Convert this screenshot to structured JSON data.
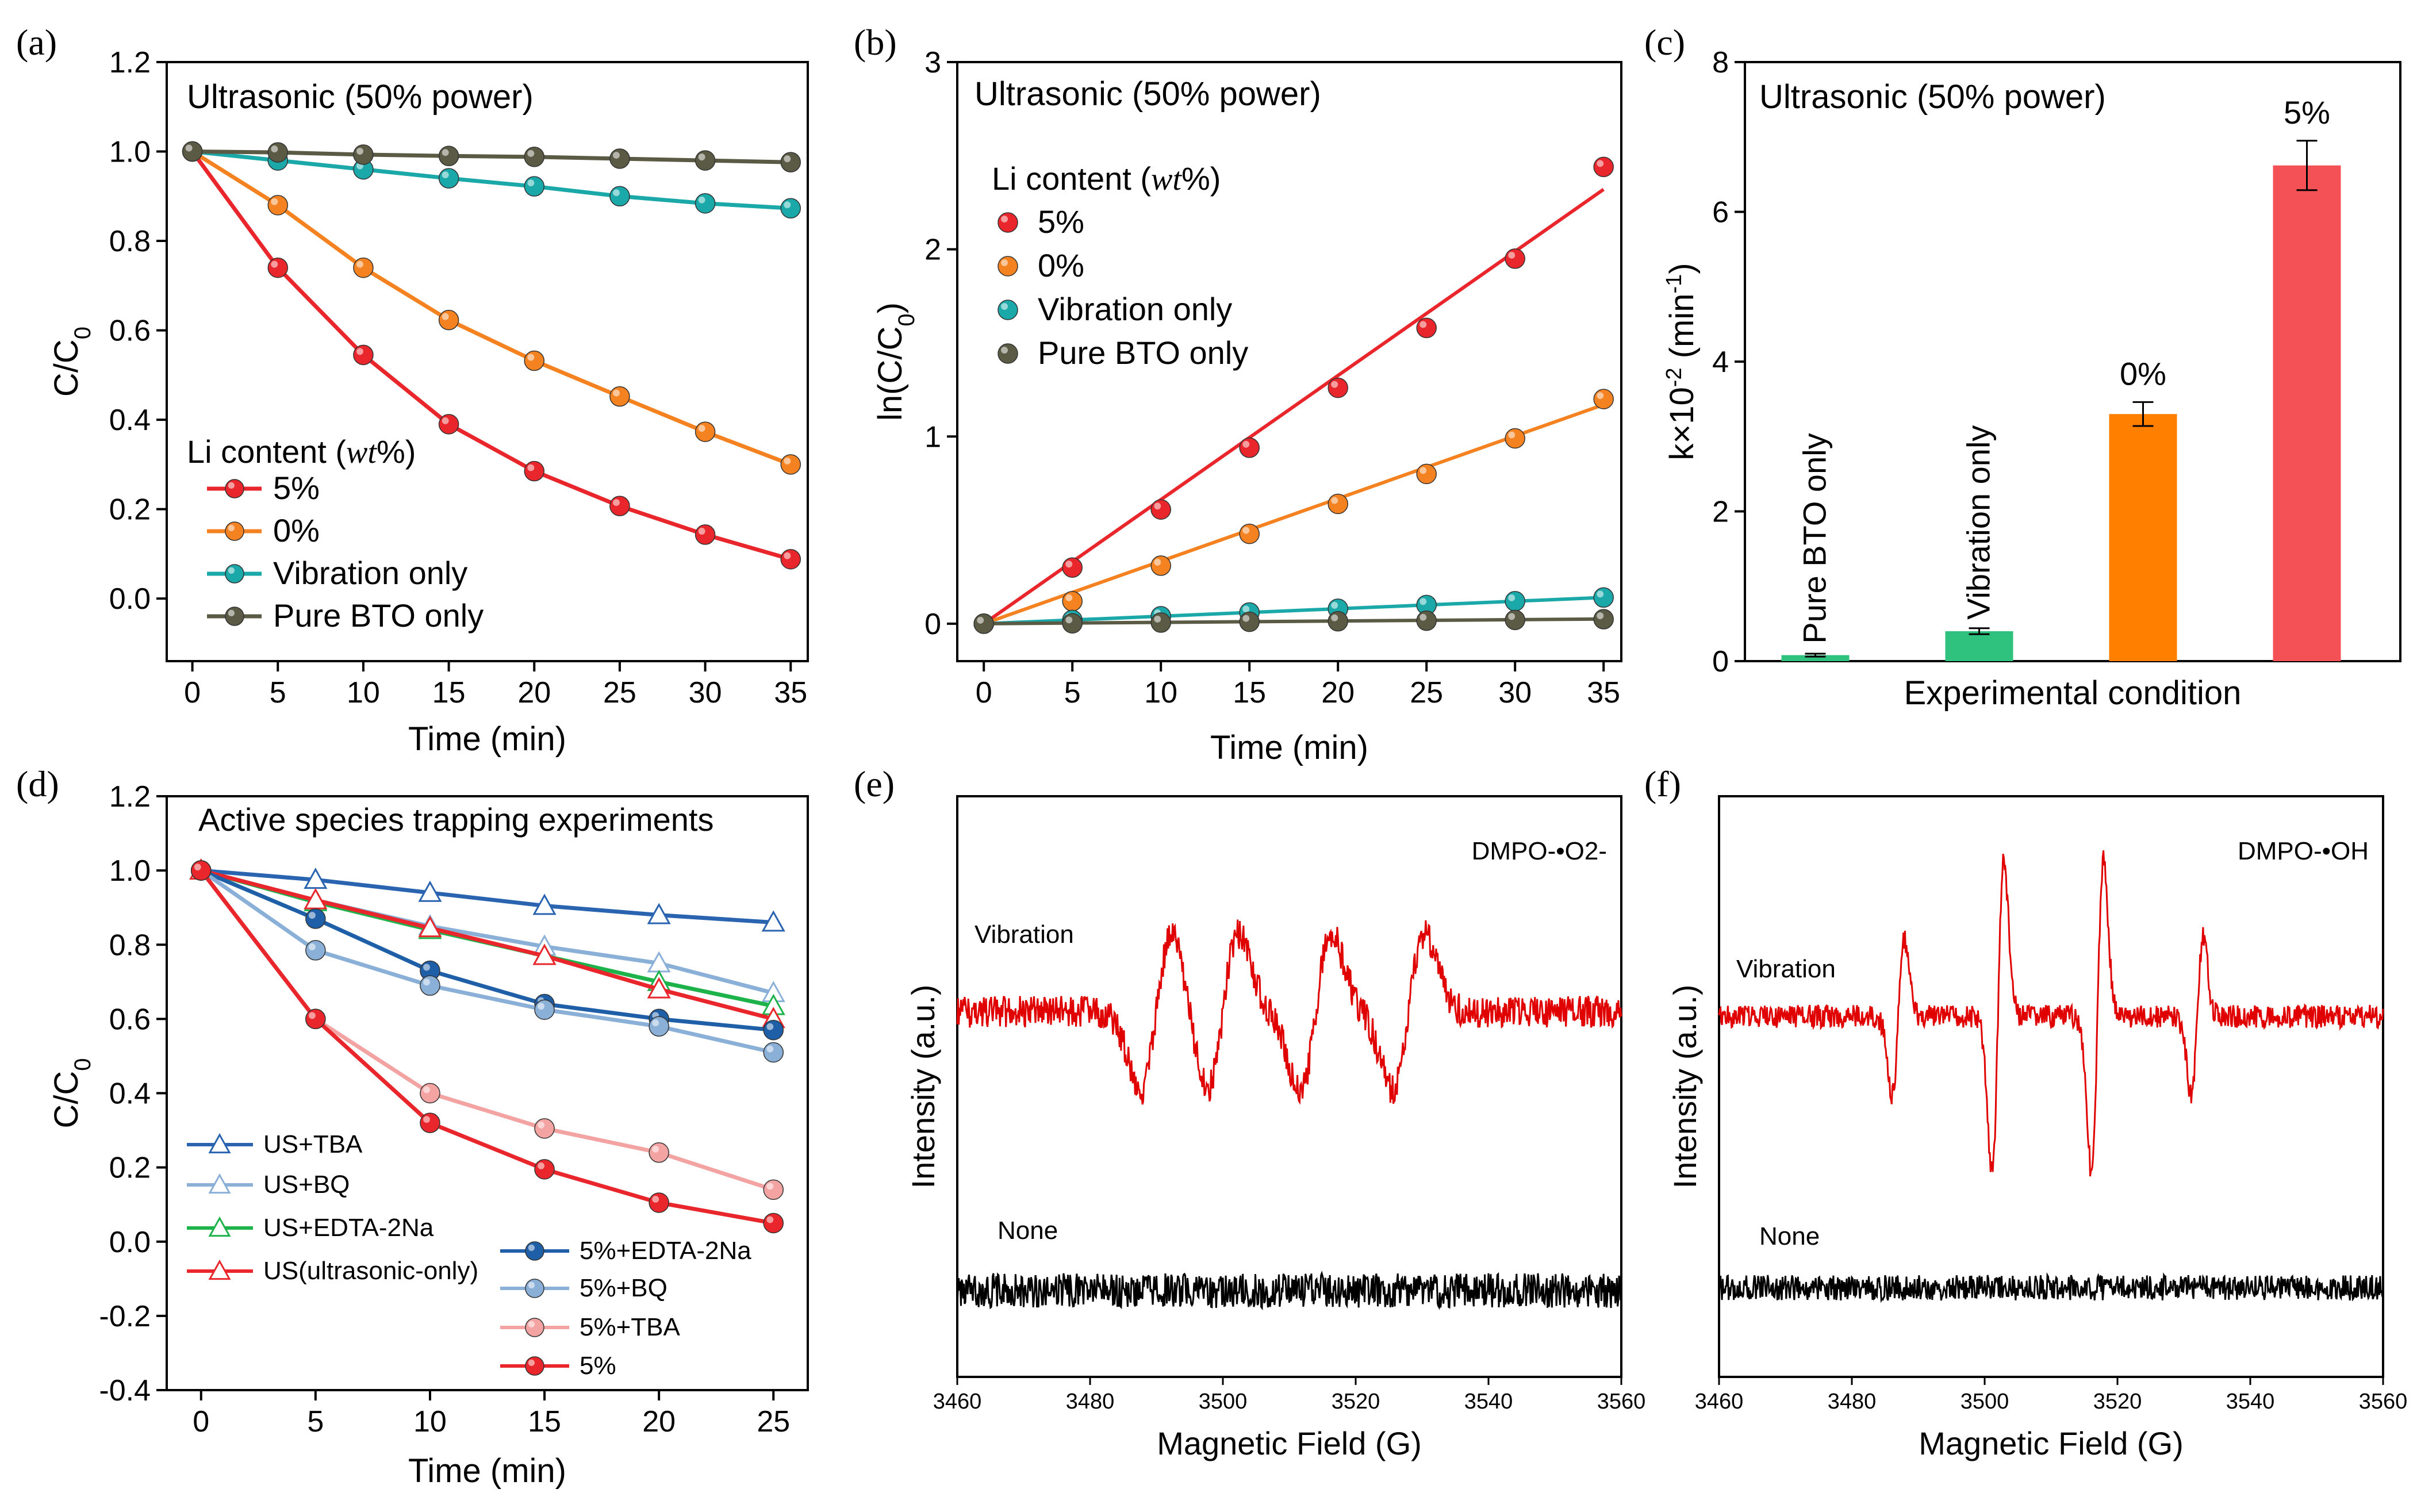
{
  "figure": {
    "panels": [
      "(a)",
      "(b)",
      "(c)",
      "(d)",
      "(e)",
      "(f)"
    ]
  },
  "chart_data": [
    {
      "id": "a",
      "type": "line",
      "panel_label": "(a)",
      "title": "Ultrasonic (50% power)",
      "xlabel": "Time (min)",
      "ylabel": "C/C0",
      "xlim": [
        -1.5,
        36
      ],
      "ylim": [
        -0.14,
        1.2
      ],
      "xticks": [
        0,
        5,
        10,
        15,
        20,
        25,
        30,
        35
      ],
      "yticks": [
        0.0,
        0.2,
        0.4,
        0.6,
        0.8,
        1.0,
        1.2
      ],
      "legend_title": "Li content (wt%)",
      "legend_position": "bottom-left",
      "x": [
        0,
        5,
        10,
        15,
        20,
        25,
        30,
        35
      ],
      "series": [
        {
          "name": "5%",
          "color": "#e8262b",
          "values": [
            1.0,
            0.74,
            0.545,
            0.39,
            0.285,
            0.207,
            0.143,
            0.088
          ]
        },
        {
          "name": "0%",
          "color": "#f58220",
          "values": [
            1.0,
            0.88,
            0.74,
            0.623,
            0.532,
            0.452,
            0.373,
            0.3
          ]
        },
        {
          "name": "Vibration only",
          "color": "#1aa8a8",
          "values": [
            1.0,
            0.98,
            0.96,
            0.94,
            0.922,
            0.9,
            0.884,
            0.873
          ]
        },
        {
          "name": "Pure BTO only",
          "color": "#5b5b45",
          "values": [
            1.0,
            0.998,
            0.993,
            0.99,
            0.988,
            0.984,
            0.98,
            0.976
          ]
        }
      ]
    },
    {
      "id": "b",
      "type": "scatter",
      "panel_label": "(b)",
      "title": "Ultrasonic (50% power)",
      "xlabel": "Time (min)",
      "ylabel": "ln(C/C0)",
      "xlim": [
        -1.5,
        36
      ],
      "ylim": [
        -0.2,
        3
      ],
      "xticks": [
        0,
        5,
        10,
        15,
        20,
        25,
        30,
        35
      ],
      "yticks": [
        0,
        1,
        2,
        3
      ],
      "legend_title": "Li content (wt%)",
      "legend_position": "top-left",
      "x": [
        0,
        5,
        10,
        15,
        20,
        25,
        30,
        35
      ],
      "series": [
        {
          "name": "5%",
          "color": "#e8262b",
          "values": [
            0,
            0.3,
            0.61,
            0.94,
            1.26,
            1.58,
            1.95,
            2.44
          ],
          "fit_end": 2.32
        },
        {
          "name": "0%",
          "color": "#f58220",
          "values": [
            0,
            0.12,
            0.31,
            0.48,
            0.64,
            0.8,
            0.99,
            1.2
          ],
          "fit_end": 1.17
        },
        {
          "name": "Vibration only",
          "color": "#1aa8a8",
          "values": [
            0,
            0.02,
            0.04,
            0.06,
            0.08,
            0.1,
            0.12,
            0.14
          ],
          "fit_end": 0.14
        },
        {
          "name": "Pure BTO only",
          "color": "#5b5b45",
          "values": [
            0,
            0.002,
            0.006,
            0.01,
            0.013,
            0.016,
            0.02,
            0.024
          ],
          "fit_end": 0.025
        }
      ]
    },
    {
      "id": "c",
      "type": "bar",
      "panel_label": "(c)",
      "title": "Ultrasonic (50% power)",
      "xlabel": "Experimental condition",
      "ylabel": "k×10-2 (min-1)",
      "ylim": [
        0,
        8
      ],
      "yticks": [
        0,
        2,
        4,
        6,
        8
      ],
      "categories": [
        "Pure BTO only",
        "Vibration only",
        "0%",
        "5%"
      ],
      "values": [
        0.08,
        0.4,
        3.3,
        6.62
      ],
      "errors": [
        0.02,
        0.04,
        0.16,
        0.33
      ],
      "colors": [
        "#2ec27e",
        "#2ec27e",
        "#ff8000",
        "#f45157"
      ],
      "label_style": [
        "vertical",
        "vertical",
        "above",
        "above"
      ]
    },
    {
      "id": "d",
      "type": "line",
      "panel_label": "(d)",
      "title": "Active species trapping experiments",
      "xlabel": "Time (min)",
      "ylabel": "C/C0",
      "xlim": [
        -1.5,
        26.5
      ],
      "ylim": [
        -0.4,
        1.2
      ],
      "xticks": [
        0,
        5,
        10,
        15,
        20,
        25
      ],
      "yticks": [
        -0.4,
        -0.2,
        0.0,
        0.2,
        0.4,
        0.6,
        0.8,
        1.0,
        1.2
      ],
      "legend_position": "bottom-left",
      "x": [
        0,
        5,
        10,
        15,
        20,
        25
      ],
      "series": [
        {
          "name": "US+TBA",
          "color": "#2a64b0",
          "marker": "triangle",
          "values": [
            1.0,
            0.975,
            0.94,
            0.905,
            0.88,
            0.86
          ]
        },
        {
          "name": "US+BQ",
          "color": "#8ab0d8",
          "marker": "triangle",
          "values": [
            1.0,
            0.92,
            0.85,
            0.795,
            0.75,
            0.67
          ]
        },
        {
          "name": "US+EDTA-2Na",
          "color": "#1db34a",
          "marker": "triangle",
          "values": [
            1.0,
            0.915,
            0.84,
            0.77,
            0.7,
            0.635
          ]
        },
        {
          "name": "US(ultrasonic-only)",
          "color": "#e8262b",
          "marker": "triangle",
          "values": [
            1.0,
            0.92,
            0.845,
            0.77,
            0.68,
            0.6
          ]
        },
        {
          "name": "5%+EDTA-2Na",
          "color": "#1f5fa8",
          "marker": "circle",
          "values": [
            1.0,
            0.87,
            0.73,
            0.64,
            0.6,
            0.57
          ]
        },
        {
          "name": "5%+BQ",
          "color": "#8ab0d8",
          "marker": "circle",
          "values": [
            1.0,
            0.785,
            0.69,
            0.625,
            0.58,
            0.51
          ]
        },
        {
          "name": "5%+TBA",
          "color": "#f4a3a3",
          "marker": "circle",
          "values": [
            1.0,
            0.6,
            0.4,
            0.305,
            0.24,
            0.14
          ]
        },
        {
          "name": "5%",
          "color": "#e8262b",
          "marker": "circle",
          "values": [
            1.0,
            0.6,
            0.32,
            0.195,
            0.105,
            0.05
          ]
        }
      ]
    },
    {
      "id": "e",
      "type": "line",
      "panel_label": "(e)",
      "title": "DMPO-•O2-",
      "xlabel": "Magnetic Field (G)",
      "ylabel": "Intensity (a.u.)",
      "xlim": [
        3460,
        3560
      ],
      "xticks": [
        3460,
        3480,
        3500,
        3520,
        3540,
        3560
      ],
      "series": [
        {
          "name": "Vibration",
          "color": "#e00000",
          "peaks": [
            3490,
            3500,
            3514,
            3528
          ]
        },
        {
          "name": "None",
          "color": "#000000"
        }
      ]
    },
    {
      "id": "f",
      "type": "line",
      "panel_label": "(f)",
      "title": "DMPO-•OH",
      "xlabel": "Magnetic Field (G)",
      "ylabel": "Intensity (a.u.)",
      "xlim": [
        3460,
        3560
      ],
      "xticks": [
        3460,
        3480,
        3500,
        3520,
        3540,
        3560
      ],
      "series": [
        {
          "name": "Vibration",
          "color": "#e00000",
          "peaks": [
            3487,
            3502,
            3517,
            3532
          ],
          "peak_amplitudes": [
            1,
            2,
            2,
            1
          ]
        },
        {
          "name": "None",
          "color": "#000000"
        }
      ]
    }
  ]
}
